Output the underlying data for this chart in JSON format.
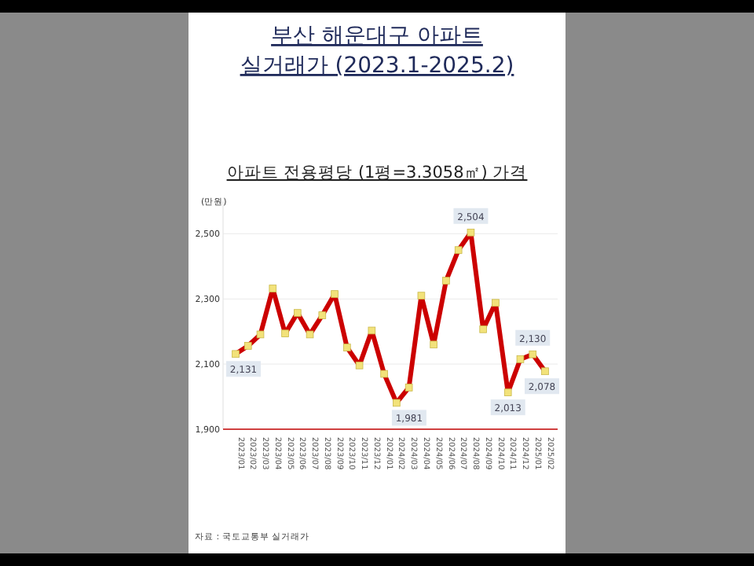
{
  "chart_data": {
    "type": "line",
    "title": "부산 해운대구 아파트 실거래가 (2023.1-2025.2)",
    "subtitle": "아파트 전용평당 (1평=3.3058㎡) 가격",
    "ylabel": "(만원)",
    "categories": [
      "2023/01",
      "2023/02",
      "2023/03",
      "2023/04",
      "2023/05",
      "2023/06",
      "2023/07",
      "2023/08",
      "2023/09",
      "2023/10",
      "2023/11",
      "2023/12",
      "2024/01",
      "2024/02",
      "2024/03",
      "2024/04",
      "2024/05",
      "2024/06",
      "2024/07",
      "2024/08",
      "2024/09",
      "2024/10",
      "2024/11",
      "2024/12",
      "2025/01",
      "2025/02"
    ],
    "series": [
      {
        "color": "#cc0000",
        "values": [
          2131,
          2156,
          2191,
          2332,
          2194,
          2257,
          2191,
          2250,
          2315,
          2151,
          2096,
          2203,
          2070,
          1981,
          2028,
          2310,
          2160,
          2356,
          2450,
          2504,
          2207,
          2288,
          2013,
          2115,
          2130,
          2078
        ],
        "value_labels": [
          "2,131",
          null,
          null,
          null,
          null,
          null,
          null,
          null,
          null,
          null,
          null,
          null,
          null,
          "1,981",
          null,
          null,
          null,
          null,
          null,
          "2,504",
          null,
          null,
          "2,013",
          null,
          "2,130",
          "2,078"
        ]
      }
    ],
    "ylim": [
      1900,
      2600
    ],
    "yticks": [
      {
        "value": 1900,
        "label": "1,900"
      },
      {
        "value": 2100,
        "label": "2,100"
      },
      {
        "value": 2300,
        "label": "2,300"
      },
      {
        "value": 2500,
        "label": "2,500"
      }
    ],
    "grid": "y",
    "marker": "square",
    "line_style": "solid",
    "annotations": [
      "자료 : 국토교통부 실거래가"
    ]
  }
}
